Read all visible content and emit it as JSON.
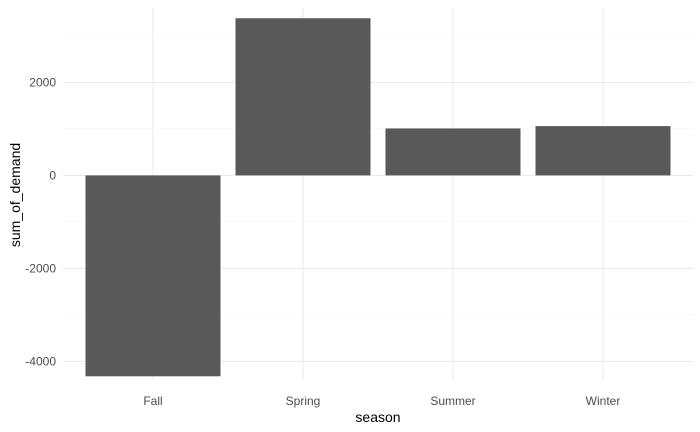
{
  "chart_data": {
    "type": "bar",
    "title": "",
    "xlabel": "season",
    "ylabel": "sum_of_demand",
    "categories": [
      "Fall",
      "Spring",
      "Summer",
      "Winter"
    ],
    "values": [
      -4320,
      3380,
      1010,
      1060
    ],
    "ylim": [
      -4400,
      3600
    ],
    "y_ticks": [
      -4000,
      -2000,
      0,
      2000
    ],
    "grid": true,
    "legend": "none",
    "colors": {
      "bar": "#595959",
      "grid_major": "#ebebeb",
      "grid_minor": "#f5f5f5",
      "background": "#ffffff"
    }
  }
}
